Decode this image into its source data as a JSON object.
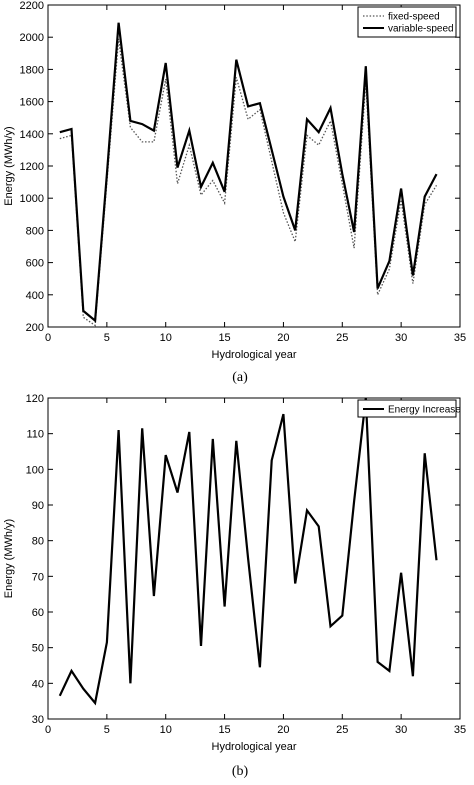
{
  "chart_data": [
    {
      "type": "line",
      "caption": "(a)",
      "xlabel": "Hydrological year",
      "ylabel": "Energy (MWh/y)",
      "xlim": [
        0,
        35
      ],
      "ylim": [
        200,
        2200
      ],
      "xticks": [
        0,
        5,
        10,
        15,
        20,
        25,
        30,
        35
      ],
      "yticks": [
        200,
        400,
        600,
        800,
        1000,
        1200,
        1400,
        1600,
        1800,
        2000,
        2200
      ],
      "grid": false,
      "legend_position": "top-right",
      "x": [
        1,
        2,
        3,
        4,
        5,
        6,
        7,
        8,
        9,
        10,
        11,
        12,
        13,
        14,
        15,
        16,
        17,
        18,
        19,
        20,
        21,
        22,
        23,
        24,
        25,
        26,
        27,
        28,
        29,
        30,
        31,
        32,
        33
      ],
      "series": [
        {
          "name": "fixed-speed",
          "style": "dotted",
          "color": "#555555",
          "values": [
            1370,
            1390,
            260,
            210,
            1100,
            1990,
            1440,
            1350,
            1350,
            1740,
            1090,
            1330,
            1020,
            1110,
            970,
            1750,
            1490,
            1550,
            1230,
            910,
            730,
            1390,
            1330,
            1480,
            1090,
            690,
            1720,
            400,
            560,
            990,
            470,
            960,
            1080
          ]
        },
        {
          "name": "variable-speed",
          "style": "solid",
          "color": "#000000",
          "values": [
            1410,
            1430,
            300,
            240,
            1150,
            2090,
            1480,
            1460,
            1420,
            1840,
            1190,
            1420,
            1070,
            1220,
            1040,
            1860,
            1570,
            1590,
            1300,
            1010,
            800,
            1490,
            1410,
            1560,
            1150,
            790,
            1820,
            440,
            610,
            1060,
            520,
            1010,
            1150
          ]
        }
      ]
    },
    {
      "type": "line",
      "caption": "(b)",
      "xlabel": "Hydrological year",
      "ylabel": "Energy (MWh/y)",
      "xlim": [
        0,
        35
      ],
      "ylim": [
        30,
        120
      ],
      "xticks": [
        0,
        5,
        10,
        15,
        20,
        25,
        30,
        35
      ],
      "yticks": [
        30,
        40,
        50,
        60,
        70,
        80,
        90,
        100,
        110,
        120
      ],
      "grid": false,
      "legend_position": "top-right",
      "x": [
        1,
        2,
        3,
        4,
        5,
        6,
        7,
        8,
        9,
        10,
        11,
        12,
        13,
        14,
        15,
        16,
        17,
        18,
        19,
        20,
        21,
        22,
        23,
        24,
        25,
        26,
        27,
        28,
        29,
        30,
        31,
        32,
        33
      ],
      "series": [
        {
          "name": "Energy Increase",
          "style": "solid",
          "color": "#000000",
          "values": [
            36.5,
            43.5,
            38.5,
            34.5,
            51.5,
            111,
            40,
            111.5,
            64.5,
            104,
            93.5,
            110.5,
            50.5,
            108.5,
            61.5,
            108,
            75,
            44.5,
            102.5,
            115.5,
            68,
            88.5,
            84,
            56,
            59,
            91,
            120,
            46,
            43.5,
            71,
            42,
            104.5,
            74.5
          ]
        }
      ]
    }
  ]
}
